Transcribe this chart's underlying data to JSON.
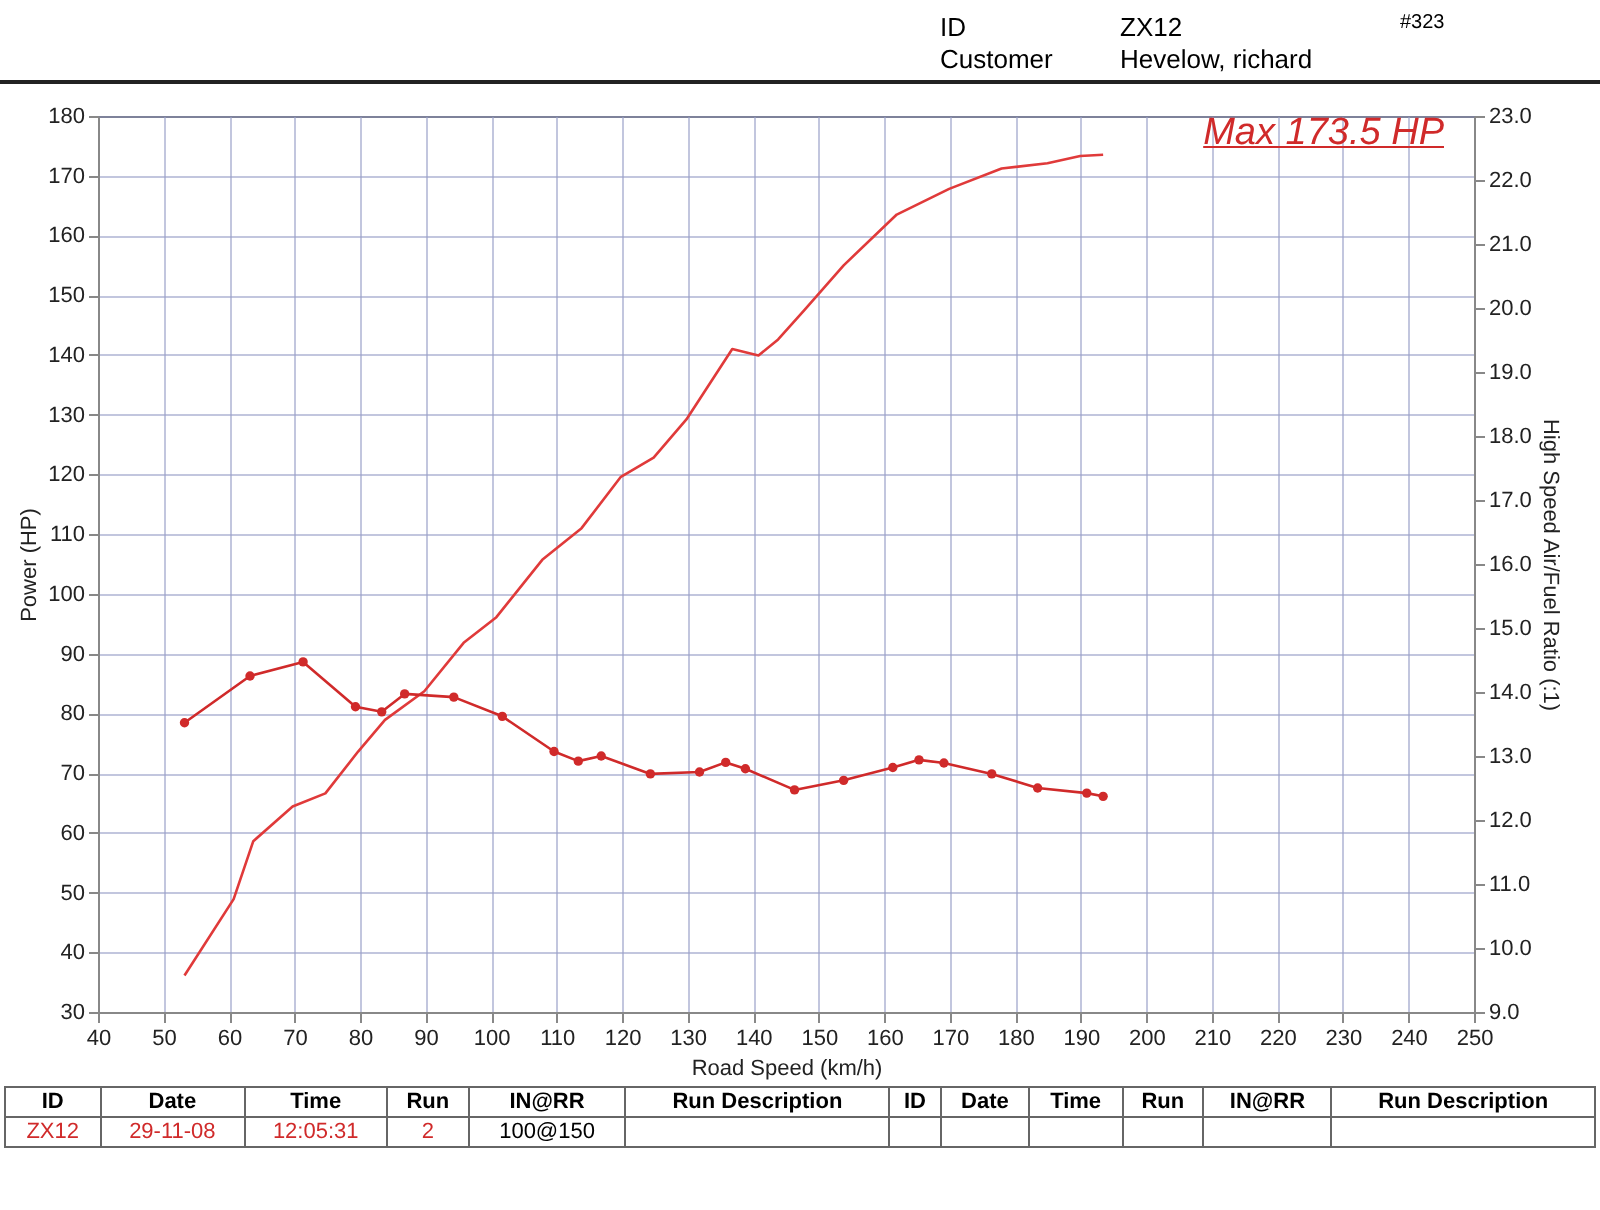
{
  "chart_data": {
    "type": "line",
    "xlabel": "Road Speed (km/h)",
    "ylabel": "Power (HP)",
    "y2label": "High Speed Air/Fuel Ratio (:1)",
    "annotations": [
      "ID",
      "ZX12",
      "Customer",
      "Hevelow, richard",
      "#323",
      "Max 173.5 HP",
      "ID",
      "Date",
      "Time",
      "Run",
      "IN@RR",
      "Run Description",
      "ID",
      "Date",
      "Time",
      "Run",
      "IN@RR",
      "Run Description",
      "ZX12",
      "29-11-08",
      "12:05:31",
      "2",
      "100@150"
    ],
    "xlim": [
      40,
      250
    ],
    "xticks": [
      40,
      50,
      60,
      70,
      80,
      90,
      100,
      110,
      120,
      130,
      140,
      150,
      160,
      170,
      180,
      190,
      200,
      210,
      220,
      230,
      240,
      250
    ],
    "ylim": [
      30,
      180
    ],
    "yticks": [
      30,
      40,
      50,
      60,
      70,
      80,
      90,
      100,
      110,
      120,
      130,
      140,
      150,
      160,
      170,
      180
    ],
    "y2lim": [
      9,
      23
    ],
    "y2ticks": [
      {
        "value": 9,
        "label": "9.0"
      },
      {
        "value": 10,
        "label": "10.0"
      },
      {
        "value": 11,
        "label": "11.0"
      },
      {
        "value": 12,
        "label": "12.0"
      },
      {
        "value": 13,
        "label": "13.0"
      },
      {
        "value": 14,
        "label": "14.0"
      },
      {
        "value": 15,
        "label": "15.0"
      },
      {
        "value": 16,
        "label": "16.0"
      },
      {
        "value": 17,
        "label": "17.0"
      },
      {
        "value": 18,
        "label": "18.0"
      },
      {
        "value": 19,
        "label": "19.0"
      },
      {
        "value": 20,
        "label": "20.0"
      },
      {
        "value": 21,
        "label": "21.0"
      },
      {
        "value": 22,
        "label": "22.0"
      },
      {
        "value": 23,
        "label": "23.0"
      }
    ],
    "grid": true,
    "series": [
      {
        "color": "#e03a3a",
        "marker": "none",
        "x": [
          53.2,
          60.7,
          63.7,
          69.7,
          74.7,
          79.7,
          83.8,
          89.8,
          95.8,
          100.8,
          107.8,
          113.8,
          119.8,
          124.8,
          129.8,
          136.8,
          140.8,
          143.8,
          147.8,
          153.8,
          161.9,
          169.9,
          177.9,
          184.9,
          189.9,
          193.4
        ],
        "values": [
          36.1,
          48.9,
          58.6,
          64.4,
          66.6,
          73.6,
          78.9,
          83.7,
          91.8,
          96.1,
          105.7,
          111.0,
          119.6,
          122.8,
          129.2,
          141.0,
          139.9,
          142.6,
          147.5,
          155.0,
          163.5,
          167.8,
          171.2,
          172.1,
          173.3,
          173.5
        ]
      },
      {
        "color": "#d02a2a",
        "marker": "circle",
        "axis": "y2",
        "x": [
          53.2,
          63.2,
          71.3,
          79.3,
          83.3,
          86.8,
          94.3,
          101.7,
          109.6,
          113.3,
          116.8,
          124.3,
          131.8,
          135.8,
          138.8,
          146.3,
          153.8,
          161.3,
          165.3,
          169.1,
          176.4,
          183.4,
          190.9,
          193.4
        ],
        "values": [
          13.52,
          14.25,
          14.47,
          13.77,
          13.69,
          13.97,
          13.92,
          13.62,
          13.07,
          12.92,
          13.0,
          12.72,
          12.75,
          12.9,
          12.8,
          12.47,
          12.62,
          12.82,
          12.94,
          12.89,
          12.72,
          12.5,
          12.42,
          12.37
        ]
      }
    ]
  }
}
